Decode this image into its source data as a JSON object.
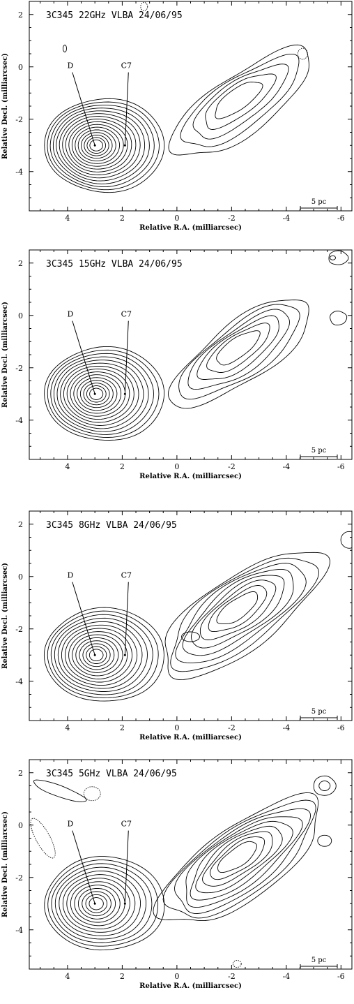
{
  "chart_data": [
    {
      "type": "contour",
      "title": "3C345   22GHz   VLBA   24/06/95",
      "xlabel": "Relative R.A. (milliarcsec)",
      "ylabel": "Relative Decl. (milliarcsec)",
      "xlim": [
        5.4,
        -6.4
      ],
      "ylim": [
        -5.5,
        2.5
      ],
      "xticks": [
        "4",
        "2",
        "0",
        "-2",
        "-4",
        "-6"
      ],
      "yticks": [
        "2",
        "0",
        "-2",
        "-4"
      ],
      "components": [
        {
          "label": "D",
          "x": 3.0,
          "y": -3.0
        },
        {
          "label": "C7",
          "x": 1.9,
          "y": -3.0
        }
      ],
      "scale_bar": "5 pc",
      "peak_position": [
        2.95,
        -3.0
      ]
    },
    {
      "type": "contour",
      "title": "3C345   15GHz   VLBA   24/06/95",
      "xlabel": "Relative R.A. (milliarcsec)",
      "ylabel": "Relative Decl. (milliarcsec)",
      "xlim": [
        5.4,
        -6.4
      ],
      "ylim": [
        -5.5,
        2.5
      ],
      "xticks": [
        "4",
        "2",
        "0",
        "-2",
        "-4",
        "-6"
      ],
      "yticks": [
        "2",
        "0",
        "-2",
        "-4"
      ],
      "components": [
        {
          "label": "D",
          "x": 3.0,
          "y": -3.0
        },
        {
          "label": "C7",
          "x": 1.9,
          "y": -3.0
        }
      ],
      "scale_bar": "5 pc",
      "peak_position": [
        2.95,
        -3.0
      ]
    },
    {
      "type": "contour",
      "title": "3C345   8GHz   VLBA   24/06/95",
      "xlabel": "Relative R.A. (milliarcsec)",
      "ylabel": "Relative Decl. (milliarcsec)",
      "xlim": [
        5.4,
        -6.4
      ],
      "ylim": [
        -5.5,
        2.5
      ],
      "xticks": [
        "4",
        "2",
        "0",
        "-2",
        "-4",
        "-6"
      ],
      "yticks": [
        "2",
        "0",
        "-2",
        "-4"
      ],
      "components": [
        {
          "label": "D",
          "x": 3.0,
          "y": -3.0
        },
        {
          "label": "C7",
          "x": 1.9,
          "y": -3.0
        }
      ],
      "scale_bar": "5 pc",
      "peak_position": [
        2.95,
        -3.0
      ]
    },
    {
      "type": "contour",
      "title": "3C345   5GHz   VLBA   24/06/95",
      "xlabel": "Relative R.A. (milliarcsec)",
      "ylabel": "Relative Decl. (milliarcsec)",
      "xlim": [
        5.4,
        -6.4
      ],
      "ylim": [
        -5.5,
        2.5
      ],
      "xticks": [
        "4",
        "2",
        "0",
        "-2",
        "-4",
        "-6"
      ],
      "yticks": [
        "2",
        "0",
        "-2",
        "-4"
      ],
      "components": [
        {
          "label": "D",
          "x": 3.0,
          "y": -3.0
        },
        {
          "label": "C7",
          "x": 1.9,
          "y": -3.0
        }
      ],
      "scale_bar": "5 pc",
      "peak_position": [
        2.95,
        -3.0
      ]
    }
  ]
}
